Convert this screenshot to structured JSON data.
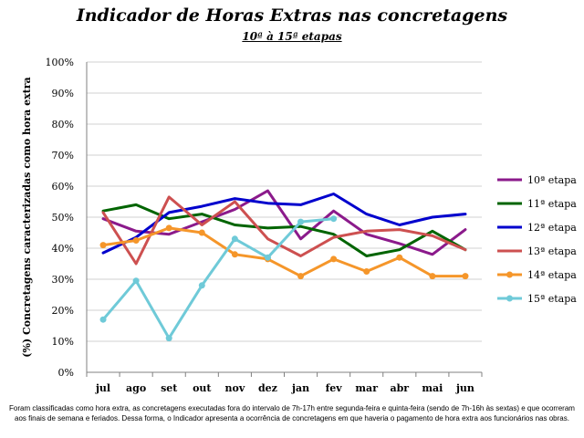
{
  "chart_data": {
    "type": "line",
    "title": "Indicador de Horas Extras nas concretagens",
    "subtitle": "10ª à 15ª etapas",
    "ylabel": "(%) Concretagens caracterizadas como hora extra",
    "xlabel": "",
    "ylim": [
      0,
      100
    ],
    "yticks": [
      "0%",
      "10%",
      "20%",
      "30%",
      "40%",
      "50%",
      "60%",
      "70%",
      "80%",
      "90%",
      "100%"
    ],
    "grid": true,
    "legend_position": "right",
    "categories": [
      "jul",
      "ago",
      "set",
      "out",
      "nov",
      "dez",
      "jan",
      "fev",
      "mar",
      "abr",
      "mai",
      "jun"
    ],
    "series": [
      {
        "name": "10ª etapa",
        "color": "#8b1a8b",
        "marker": false,
        "values": [
          49.5,
          45.5,
          44.5,
          48.5,
          52.5,
          58.5,
          43.0,
          52.0,
          44.5,
          41.5,
          38.0,
          46.0
        ]
      },
      {
        "name": "11ª etapa",
        "color": "#006400",
        "marker": false,
        "values": [
          52.0,
          54.0,
          49.5,
          51.0,
          47.5,
          46.5,
          47.0,
          44.5,
          37.5,
          39.5,
          45.5,
          39.5
        ]
      },
      {
        "name": "12ª etapa",
        "color": "#0000cd",
        "marker": false,
        "values": [
          38.5,
          43.5,
          51.5,
          53.5,
          56.0,
          54.5,
          54.0,
          57.5,
          51.0,
          47.5,
          50.0,
          51.0
        ]
      },
      {
        "name": "13ª etapa",
        "color": "#cd5050",
        "marker": false,
        "values": [
          51.5,
          35.0,
          56.5,
          47.5,
          55.0,
          43.0,
          37.5,
          43.5,
          45.5,
          46.0,
          44.0,
          39.5
        ]
      },
      {
        "name": "14ª etapa",
        "color": "#f5962a",
        "marker": true,
        "values": [
          41.0,
          42.5,
          46.5,
          45.0,
          38.0,
          36.5,
          31.0,
          36.5,
          32.5,
          37.0,
          31.0,
          31.0
        ]
      },
      {
        "name": "15ª etapa",
        "color": "#6fcad8",
        "marker": true,
        "values": [
          17.0,
          29.5,
          11.0,
          28.0,
          43.0,
          37.0,
          48.5,
          49.5,
          null,
          null,
          null,
          null
        ]
      }
    ]
  },
  "footnote": "Foram classificadas como hora extra, as concretagens executadas fora do intervalo de 7h-17h entre segunda-feira e quinta-feira (sendo de 7h-16h às sextas) e que ocorreram aos finais de semana e feriados. Dessa forma, o Indicador apresenta a ocorrência de concretagens em que haveria o pagamento de hora extra aos funcionários nas obras."
}
